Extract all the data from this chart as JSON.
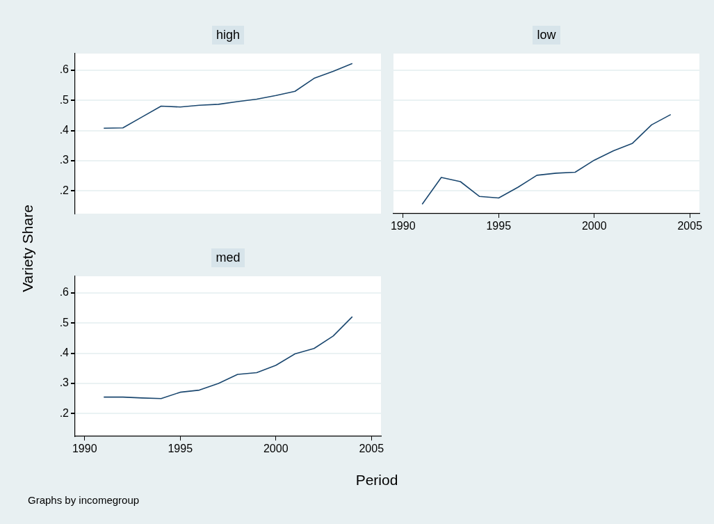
{
  "chart_data": [
    {
      "type": "line",
      "title": "high",
      "x": [
        1991,
        1992,
        1993,
        1994,
        1995,
        1996,
        1997,
        1998,
        1999,
        2000,
        2001,
        2002,
        2003,
        2004
      ],
      "series": [
        {
          "color": "#1a476f",
          "values": [
            0.408,
            0.409,
            0.445,
            0.481,
            0.478,
            0.484,
            0.487,
            0.496,
            0.504,
            0.516,
            0.53,
            0.573,
            0.596,
            0.622
          ]
        }
      ],
      "xlim": [
        1989.5,
        2005.5
      ],
      "xticks": [
        1990,
        1995,
        2000,
        2005
      ],
      "ylim": [
        0.125,
        0.655
      ],
      "yticks": [
        {
          "value": 0.2,
          "label": ".2"
        },
        {
          "value": 0.3,
          "label": ".3"
        },
        {
          "value": 0.4,
          "label": ".4"
        },
        {
          "value": 0.5,
          "label": ".5"
        },
        {
          "value": 0.6,
          "label": ".6"
        }
      ],
      "grid": "y",
      "marker": "none",
      "tick_labels": "y",
      "ylabel": "Variety Share"
    },
    {
      "type": "line",
      "title": "low",
      "x": [
        1991,
        1992,
        1993,
        1994,
        1995,
        1996,
        1997,
        1998,
        1999,
        2000,
        2001,
        2002,
        2003,
        2004
      ],
      "series": [
        {
          "color": "#1a476f",
          "values": [
            0.156,
            0.245,
            0.231,
            0.182,
            0.177,
            0.212,
            0.252,
            0.259,
            0.262,
            0.302,
            0.333,
            0.358,
            0.419,
            0.453
          ]
        }
      ],
      "xlim": [
        1989.5,
        2005.5
      ],
      "xticks": [
        1990,
        1995,
        2000,
        2005
      ],
      "ylim": [
        0.125,
        0.655
      ],
      "yticks": [
        {
          "value": 0.2,
          "label": null
        },
        {
          "value": 0.3,
          "label": null
        },
        {
          "value": 0.4,
          "label": null
        },
        {
          "value": 0.5,
          "label": null
        },
        {
          "value": 0.6,
          "label": null
        }
      ],
      "grid": "y",
      "marker": "none",
      "tick_labels": "x"
    },
    {
      "type": "line",
      "title": "med",
      "x": [
        1991,
        1992,
        1993,
        1994,
        1995,
        1996,
        1997,
        1998,
        1999,
        2000,
        2001,
        2002,
        2003,
        2004
      ],
      "series": [
        {
          "color": "#1a476f",
          "values": [
            0.255,
            0.255,
            0.252,
            0.25,
            0.271,
            0.278,
            0.3,
            0.33,
            0.336,
            0.36,
            0.398,
            0.416,
            0.457,
            0.521
          ]
        }
      ],
      "xlim": [
        1989.5,
        2005.5
      ],
      "xticks": [
        1990,
        1995,
        2000,
        2005
      ],
      "ylim": [
        0.125,
        0.655
      ],
      "yticks": [
        {
          "value": 0.2,
          "label": ".2"
        },
        {
          "value": 0.3,
          "label": ".3"
        },
        {
          "value": 0.4,
          "label": ".4"
        },
        {
          "value": 0.5,
          "label": ".5"
        },
        {
          "value": 0.6,
          "label": ".6"
        }
      ],
      "grid": "y",
      "marker": "none",
      "xlabel": "Period",
      "annotations": [
        "Graphs by incomegroup"
      ]
    }
  ]
}
